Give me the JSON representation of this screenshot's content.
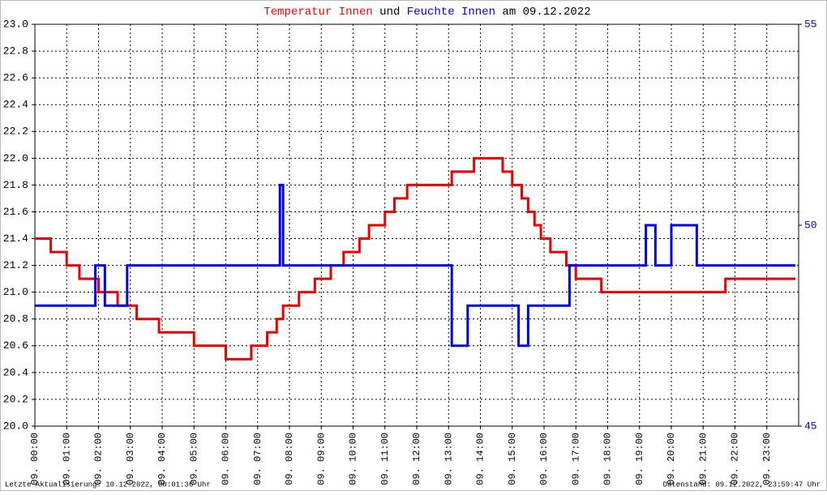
{
  "chart_data": {
    "type": "line",
    "step": true,
    "title_parts": [
      "Temperatur Innen",
      "und",
      "Feuchte Innen",
      "am 09.12.2022"
    ],
    "title_colors": [
      "#ff0000",
      "#000000",
      "#0000ee",
      "#000000"
    ],
    "footer_left": "Letzte Aktualisierung: 10.12.2022, 00:01:36 Uhr",
    "footer_right": "Datenstand: 09.12.2022, 23:59:47 Uhr",
    "xlim": [
      0,
      24
    ],
    "xticks": [
      {
        "value": 0,
        "label": "09. 00:00"
      },
      {
        "value": 1,
        "label": "09. 01:00"
      },
      {
        "value": 2,
        "label": "09. 02:00"
      },
      {
        "value": 3,
        "label": "09. 03:00"
      },
      {
        "value": 4,
        "label": "09. 04:00"
      },
      {
        "value": 5,
        "label": "09. 05:00"
      },
      {
        "value": 6,
        "label": "09. 06:00"
      },
      {
        "value": 7,
        "label": "09. 07:00"
      },
      {
        "value": 8,
        "label": "09. 08:00"
      },
      {
        "value": 9,
        "label": "09. 09:00"
      },
      {
        "value": 10,
        "label": "09. 10:00"
      },
      {
        "value": 11,
        "label": "09. 11:00"
      },
      {
        "value": 12,
        "label": "09. 12:00"
      },
      {
        "value": 13,
        "label": "09. 13:00"
      },
      {
        "value": 14,
        "label": "09. 14:00"
      },
      {
        "value": 15,
        "label": "09. 15:00"
      },
      {
        "value": 16,
        "label": "09. 16:00"
      },
      {
        "value": 17,
        "label": "09. 17:00"
      },
      {
        "value": 18,
        "label": "09. 18:00"
      },
      {
        "value": 19,
        "label": "09. 19:00"
      },
      {
        "value": 20,
        "label": "09. 20:00"
      },
      {
        "value": 21,
        "label": "09. 21:00"
      },
      {
        "value": 22,
        "label": "09. 22:00"
      },
      {
        "value": 23,
        "label": "09. 23:00"
      }
    ],
    "ylim": [
      20,
      23
    ],
    "yticks": [
      {
        "value": 20,
        "label": "20.0"
      },
      20.2,
      20.4,
      20.6,
      20.8,
      {
        "value": 21,
        "label": "21.0"
      },
      21.2,
      21.4,
      21.6,
      21.8,
      {
        "value": 22,
        "label": "22.0"
      },
      22.2,
      22.4,
      22.6,
      22.8,
      {
        "value": 23,
        "label": "23.0"
      }
    ],
    "y2lim": [
      45,
      55
    ],
    "y2ticks": [
      45,
      50,
      55
    ],
    "y2color": "#0000ee",
    "grid": true,
    "series": [
      {
        "color": "#ee0000",
        "x": [
          0,
          0.5,
          1.0,
          1.4,
          2.0,
          2.6,
          3.2,
          3.9,
          5.0,
          6.0,
          6.8,
          7.3,
          7.6,
          7.8,
          8.3,
          8.8,
          9.3,
          9.7,
          10.2,
          10.5,
          11.0,
          11.3,
          11.7,
          13.1,
          13.8,
          14.7,
          15.0,
          15.3,
          15.5,
          15.7,
          15.9,
          16.2,
          16.7,
          17.0,
          17.8,
          21.7,
          23.9
        ],
        "values": [
          21.4,
          21.3,
          21.2,
          21.1,
          21.0,
          20.9,
          20.8,
          20.7,
          20.6,
          20.5,
          20.6,
          20.7,
          20.8,
          20.9,
          21.0,
          21.1,
          21.2,
          21.3,
          21.4,
          21.5,
          21.6,
          21.7,
          21.8,
          21.9,
          22.0,
          21.9,
          21.8,
          21.7,
          21.6,
          21.5,
          21.4,
          21.3,
          21.2,
          21.1,
          21.0,
          21.1,
          21.1
        ]
      },
      {
        "color": "#0000ee",
        "axis": "y2",
        "x": [
          0,
          1.9,
          2.2,
          2.9,
          7.7,
          7.8,
          13.1,
          13.6,
          15.2,
          15.5,
          16.8,
          19.2,
          19.5,
          20.0,
          20.8,
          21.6,
          23.9
        ],
        "values": [
          48,
          49,
          48,
          49,
          51,
          49,
          47,
          48,
          47,
          48,
          49,
          50,
          49,
          50,
          49,
          49,
          49
        ]
      }
    ]
  }
}
